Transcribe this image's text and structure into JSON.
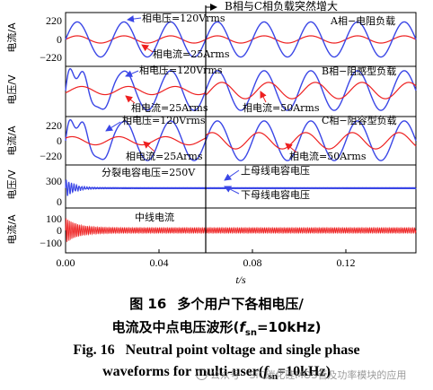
{
  "figure": {
    "event_label": "B相与C相负载突然增大",
    "xlabel": "t/s",
    "colors": {
      "voltage": "#3a46e6",
      "current": "#ee2020",
      "bus": "#3a46e6",
      "neutral": "#ee2020"
    }
  },
  "chart_data": [
    {
      "type": "line",
      "panel": "a-phase",
      "ylabel": "电流/A",
      "yticks": [
        "220",
        "0",
        "−220"
      ],
      "ylim": [
        -260,
        260
      ],
      "panel_label": "A相−电阻负载",
      "annotations": [
        "相电压=120Vrms",
        "相电流=25Arms"
      ],
      "series": [
        {
          "name": "相电压",
          "type": "sine",
          "amplitude": 170,
          "freq_hz": 50
        },
        {
          "name": "相电流",
          "type": "sine",
          "amplitude": 35,
          "freq_hz": 50
        }
      ]
    },
    {
      "type": "line",
      "panel": "b-phase",
      "ylabel": "电压/V",
      "panel_label": "B相−阻感型负载",
      "annotations": [
        "相电压=120Vrms",
        "相电流=25Arms",
        "相电流=50Arms"
      ],
      "series": [
        {
          "name": "相电压",
          "type": "sine",
          "amplitude": 170,
          "freq_hz": 50
        },
        {
          "name": "相电流",
          "type": "sine",
          "amplitude_before": 35,
          "amplitude_after": 70,
          "freq_hz": 50
        }
      ]
    },
    {
      "type": "line",
      "panel": "c-phase",
      "ylabel": "电流/A",
      "yticks": [
        "220",
        "0",
        "−220"
      ],
      "panel_label": "C相−阻容型负载",
      "annotations": [
        "相电压=120Vrms",
        "相电流=25Arms",
        "相电流=50Arms"
      ],
      "series": [
        {
          "name": "相电压",
          "type": "sine",
          "amplitude": 170,
          "freq_hz": 50
        },
        {
          "name": "相电流",
          "type": "sine",
          "amplitude_before": 35,
          "amplitude_after": 70,
          "freq_hz": 50
        }
      ]
    },
    {
      "type": "line",
      "panel": "split-capacitor",
      "ylabel": "电压/V",
      "yticks": [
        "300",
        "0"
      ],
      "annotations": [
        "分裂电容电压=250V",
        "上母线电容电压",
        "下母线电容电压"
      ],
      "series": [
        {
          "name": "上母线电容电压",
          "value": 250
        },
        {
          "name": "下母线电容电压",
          "value": 250
        }
      ]
    },
    {
      "type": "line",
      "panel": "neutral-current",
      "ylabel": "电流/A",
      "yticks": [
        "100",
        "0",
        "−100"
      ],
      "annotations": [
        "中线电流"
      ],
      "series": [
        {
          "name": "中线电流"
        }
      ]
    }
  ],
  "x_axis": {
    "ticks": [
      "0.00",
      "0.04",
      "0.08",
      "0.12"
    ],
    "tick_values": [
      0,
      0.04,
      0.08,
      0.12
    ],
    "xlim": [
      0,
      0.15
    ],
    "event_time": 0.06
  },
  "caption": {
    "cn_line1_num": "图 16",
    "cn_line1_text": "多个用户下各相电压/",
    "cn_line2_pre": "电流及中点电压波形(",
    "cn_line2_f": "f",
    "cn_line2_sub": "sn",
    "cn_line2_post": "=10kHz)",
    "en_line1_num": "Fig. 16",
    "en_line1_text": "Neutral point voltage and single phase",
    "en_line2_pre": "waveforms for multi-user(",
    "en_line2_f": "f",
    "en_line2_sub": "sn",
    "en_line2_post": "=10kHz)"
  },
  "watermark": {
    "text": "公众号 · SiC碳化硅MOS管及功率模块的应用"
  }
}
